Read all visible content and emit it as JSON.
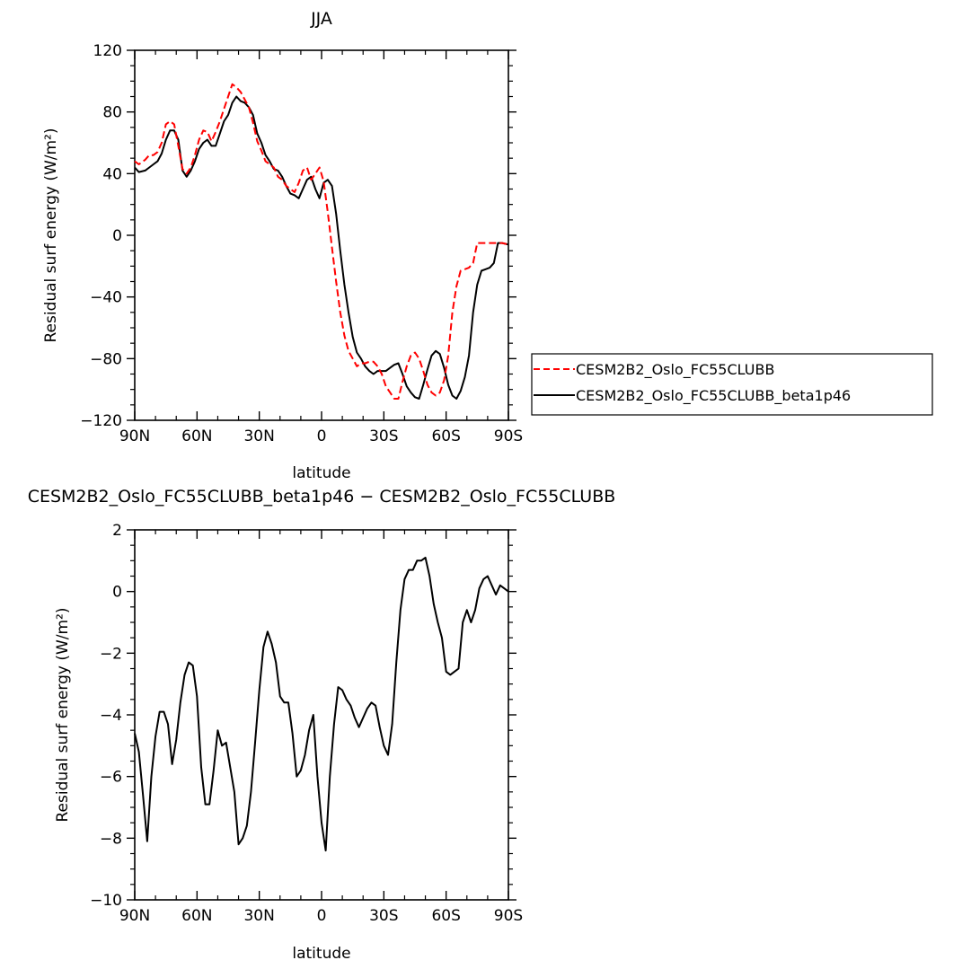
{
  "figure": {
    "top_panel": {
      "title": "JJA",
      "xlabel": "latitude",
      "ylabel": "Residual surf energy (W/m²)"
    },
    "bottom_panel": {
      "title": "CESM2B2_Oslo_FC55CLUBB_beta1p46 − CESM2B2_Oslo_FC55CLUBB",
      "xlabel": "latitude",
      "ylabel": "Residual surf energy (W/m²)"
    },
    "legend": {
      "items": [
        {
          "label": "CESM2B2_Oslo_FC55CLUBB",
          "color": "#ff0000",
          "dash": "dashed"
        },
        {
          "label": "CESM2B2_Oslo_FC55CLUBB_beta1p46",
          "color": "#000000",
          "dash": "solid"
        }
      ]
    }
  },
  "chart_data": [
    {
      "type": "line",
      "title": "JJA",
      "xlabel": "latitude",
      "ylabel": "Residual surf energy (W/m²)",
      "xlim": [
        90,
        -90
      ],
      "ylim": [
        -120,
        120
      ],
      "xticks": [
        90,
        60,
        30,
        0,
        -30,
        -60,
        -90
      ],
      "xtick_labels": [
        "90N",
        "60N",
        "30N",
        "0",
        "30S",
        "60S",
        "90S"
      ],
      "yticks": [
        120,
        80,
        40,
        0,
        -40,
        -80,
        -120
      ],
      "ytick_labels": [
        "120",
        "80",
        "40",
        "0",
        "−40",
        "−80",
        "−120"
      ],
      "legend_position": "right",
      "series": [
        {
          "name": "CESM2B2_Oslo_FC55CLUBB",
          "color": "#ff0000",
          "dash": "dashed",
          "x": [
            90,
            88,
            85,
            83,
            81,
            79,
            77,
            75,
            73,
            71,
            69,
            67,
            65,
            63,
            61,
            59,
            57,
            55,
            53,
            51,
            49,
            47,
            45,
            43,
            41,
            39,
            37,
            35,
            33,
            31,
            29,
            27,
            25,
            23,
            21,
            19,
            17,
            15,
            13,
            11,
            9,
            7,
            5,
            3,
            1,
            -1,
            -3,
            -5,
            -7,
            -9,
            -11,
            -13,
            -15,
            -17,
            -19,
            -21,
            -23,
            -25,
            -27,
            -29,
            -31,
            -33,
            -35,
            -37,
            -39,
            -41,
            -43,
            -45,
            -47,
            -49,
            -51,
            -53,
            -55,
            -57,
            -59,
            -61,
            -63,
            -65,
            -67,
            -69,
            -71,
            -73,
            -75,
            -77,
            -79,
            -81,
            -83,
            -85,
            -87,
            -90
          ],
          "values": [
            48,
            46,
            49,
            52,
            52,
            54,
            60,
            72,
            74,
            72,
            58,
            43,
            40,
            44,
            52,
            62,
            68,
            67,
            61,
            67,
            74,
            82,
            90,
            98,
            96,
            93,
            88,
            83,
            73,
            61,
            55,
            48,
            46,
            44,
            38,
            36,
            32,
            30,
            28,
            34,
            42,
            44,
            36,
            40,
            44,
            35,
            15,
            -8,
            -30,
            -50,
            -65,
            -75,
            -80,
            -85,
            -83,
            -83,
            -82,
            -82,
            -85,
            -90,
            -98,
            -102,
            -106,
            -106,
            -95,
            -85,
            -78,
            -76,
            -80,
            -88,
            -97,
            -102,
            -104,
            -102,
            -94,
            -78,
            -50,
            -33,
            -23,
            -22,
            -21,
            -18,
            -5,
            -5,
            -5,
            -5,
            -5,
            -5,
            -5,
            -6
          ]
        },
        {
          "name": "CESM2B2_Oslo_FC55CLUBB_beta1p46",
          "color": "#000000",
          "dash": "solid",
          "x": [
            90,
            88,
            85,
            83,
            81,
            79,
            77,
            75,
            73,
            71,
            69,
            67,
            65,
            63,
            61,
            59,
            57,
            55,
            53,
            51,
            49,
            47,
            45,
            43,
            41,
            39,
            37,
            35,
            33,
            31,
            29,
            27,
            25,
            23,
            21,
            19,
            17,
            15,
            13,
            11,
            9,
            7,
            5,
            3,
            1,
            -1,
            -3,
            -5,
            -7,
            -9,
            -11,
            -13,
            -15,
            -17,
            -19,
            -21,
            -23,
            -25,
            -27,
            -29,
            -31,
            -33,
            -35,
            -37,
            -39,
            -41,
            -43,
            -45,
            -47,
            -49,
            -51,
            -53,
            -55,
            -57,
            -59,
            -61,
            -63,
            -65,
            -67,
            -69,
            -71,
            -73,
            -75,
            -77,
            -79,
            -81,
            -83,
            -85,
            -87,
            -90
          ],
          "values": [
            44,
            41,
            42,
            44,
            46,
            48,
            53,
            62,
            68,
            68,
            62,
            42,
            38,
            42,
            48,
            56,
            60,
            62,
            58,
            58,
            66,
            74,
            78,
            86,
            90,
            87,
            86,
            83,
            78,
            66,
            60,
            52,
            48,
            43,
            42,
            38,
            32,
            27,
            26,
            24,
            30,
            36,
            38,
            30,
            24,
            34,
            36,
            32,
            14,
            -10,
            -32,
            -50,
            -66,
            -76,
            -80,
            -85,
            -88,
            -90,
            -88,
            -88,
            -88,
            -86,
            -84,
            -83,
            -90,
            -98,
            -102,
            -105,
            -106,
            -97,
            -87,
            -78,
            -75,
            -77,
            -86,
            -97,
            -104,
            -106,
            -101,
            -92,
            -78,
            -50,
            -32,
            -23,
            -22,
            -21,
            -18,
            -5,
            -5,
            -6
          ]
        }
      ]
    },
    {
      "type": "line",
      "title": "CESM2B2_Oslo_FC55CLUBB_beta1p46 − CESM2B2_Oslo_FC55CLUBB",
      "xlabel": "latitude",
      "ylabel": "Residual surf energy (W/m²)",
      "xlim": [
        90,
        -90
      ],
      "ylim": [
        -10,
        2
      ],
      "xticks": [
        90,
        60,
        30,
        0,
        -30,
        -60,
        -90
      ],
      "xtick_labels": [
        "90N",
        "60N",
        "30N",
        "0",
        "30S",
        "60S",
        "90S"
      ],
      "yticks": [
        2,
        0,
        -2,
        -4,
        -6,
        -8,
        -10
      ],
      "ytick_labels": [
        "2",
        "0",
        "−2",
        "−4",
        "−6",
        "−8",
        "−10"
      ],
      "series": [
        {
          "color": "#000000",
          "dash": "solid",
          "x": [
            90,
            88,
            86,
            84,
            82,
            80,
            78,
            76,
            74,
            72,
            70,
            68,
            66,
            64,
            62,
            60,
            58,
            56,
            54,
            52,
            50,
            48,
            46,
            44,
            42,
            40,
            38,
            36,
            34,
            32,
            30,
            28,
            26,
            24,
            22,
            20,
            18,
            16,
            14,
            12,
            10,
            8,
            6,
            4,
            2,
            0,
            -2,
            -4,
            -6,
            -8,
            -10,
            -12,
            -14,
            -16,
            -18,
            -20,
            -22,
            -24,
            -26,
            -28,
            -30,
            -32,
            -34,
            -36,
            -38,
            -40,
            -42,
            -44,
            -46,
            -48,
            -50,
            -52,
            -54,
            -56,
            -58,
            -60,
            -62,
            -64,
            -66,
            -68,
            -70,
            -72,
            -74,
            -76,
            -78,
            -80,
            -82,
            -84,
            -86,
            -88,
            -90
          ],
          "values": [
            -4.6,
            -5.2,
            -6.6,
            -8.1,
            -6.0,
            -4.7,
            -3.9,
            -3.9,
            -4.3,
            -5.6,
            -4.8,
            -3.6,
            -2.7,
            -2.3,
            -2.4,
            -3.4,
            -5.7,
            -6.9,
            -6.9,
            -5.8,
            -4.5,
            -5.0,
            -4.9,
            -5.7,
            -6.5,
            -8.2,
            -8.0,
            -7.6,
            -6.5,
            -4.9,
            -3.2,
            -1.8,
            -1.3,
            -1.7,
            -2.3,
            -3.4,
            -3.6,
            -3.6,
            -4.6,
            -6.0,
            -5.8,
            -5.3,
            -4.5,
            -4.0,
            -6.0,
            -7.5,
            -8.4,
            -6.0,
            -4.3,
            -3.1,
            -3.2,
            -3.5,
            -3.7,
            -4.1,
            -4.4,
            -4.1,
            -3.8,
            -3.6,
            -3.7,
            -4.4,
            -5.0,
            -5.3,
            -4.3,
            -2.3,
            -0.6,
            0.4,
            0.7,
            0.7,
            1.0,
            1.0,
            1.1,
            0.5,
            -0.4,
            -1.0,
            -1.5,
            -2.6,
            -2.7,
            -2.6,
            -2.5,
            -1.0,
            -0.6,
            -1.0,
            -0.6,
            0.1,
            0.4,
            0.5,
            0.2,
            -0.1,
            0.2,
            0.1,
            0.0
          ]
        }
      ]
    }
  ]
}
